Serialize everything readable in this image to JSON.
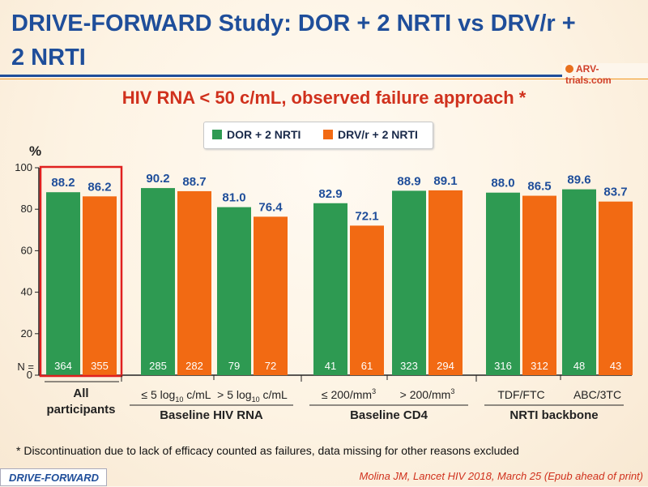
{
  "header": {
    "title": "DRIVE-FORWARD Study: DOR + 2 NRTI vs DRV/r + 2 NRTI",
    "logo_text": "ARV-trials.com"
  },
  "subtitle": "HIV RNA < 50 c/mL, observed failure approach *",
  "footnote": "* Discontinuation due to lack of efficacy counted as failures, data missing for other reasons excluded",
  "badge": "DRIVE-FORWARD",
  "citation": "Molina JM, Lancet HIV 2018, March 25 (Epub ahead of print)",
  "colors": {
    "dor": "#2e9a52",
    "drv": "#f26a13",
    "highlight": "#e0201f",
    "axis": "#222222"
  },
  "chart_data": {
    "type": "bar",
    "ylabel": "%",
    "ylim": [
      0,
      100
    ],
    "yticks": [
      0,
      20,
      40,
      60,
      80,
      100
    ],
    "n_label": "N =",
    "series": [
      {
        "name": "DOR + 2 NRTI",
        "color": "#2e9a52"
      },
      {
        "name": "DRV/r + 2 NRTI",
        "color": "#f26a13"
      }
    ],
    "groups": [
      {
        "name": "All participants",
        "highlighted": true,
        "subgroups": [
          {
            "label": "",
            "values": [
              88.2,
              86.2
            ],
            "n": [
              364,
              355
            ]
          }
        ]
      },
      {
        "name": "Baseline HIV RNA",
        "subgroups": [
          {
            "label_parts": [
              "≤ 5 log",
              "10",
              " c/mL"
            ],
            "values": [
              90.2,
              88.7
            ],
            "n": [
              285,
              282
            ]
          },
          {
            "label_parts": [
              "> 5 log",
              "10",
              " c/mL"
            ],
            "values": [
              81.0,
              76.4
            ],
            "n": [
              79,
              72
            ]
          }
        ]
      },
      {
        "name": "Baseline CD4",
        "subgroups": [
          {
            "label_parts": [
              "≤ 200/mm",
              "3",
              ""
            ],
            "values": [
              82.9,
              72.1
            ],
            "n": [
              41,
              61
            ]
          },
          {
            "label_parts": [
              "> 200/mm",
              "3",
              ""
            ],
            "values": [
              88.9,
              89.1
            ],
            "n": [
              323,
              294
            ]
          }
        ]
      },
      {
        "name": "NRTI backbone",
        "subgroups": [
          {
            "label": "TDF/FTC",
            "values": [
              88.0,
              86.5
            ],
            "n": [
              316,
              312
            ]
          },
          {
            "label": "ABC/3TC",
            "values": [
              89.6,
              83.7
            ],
            "n": [
              48,
              43
            ]
          }
        ]
      }
    ]
  }
}
